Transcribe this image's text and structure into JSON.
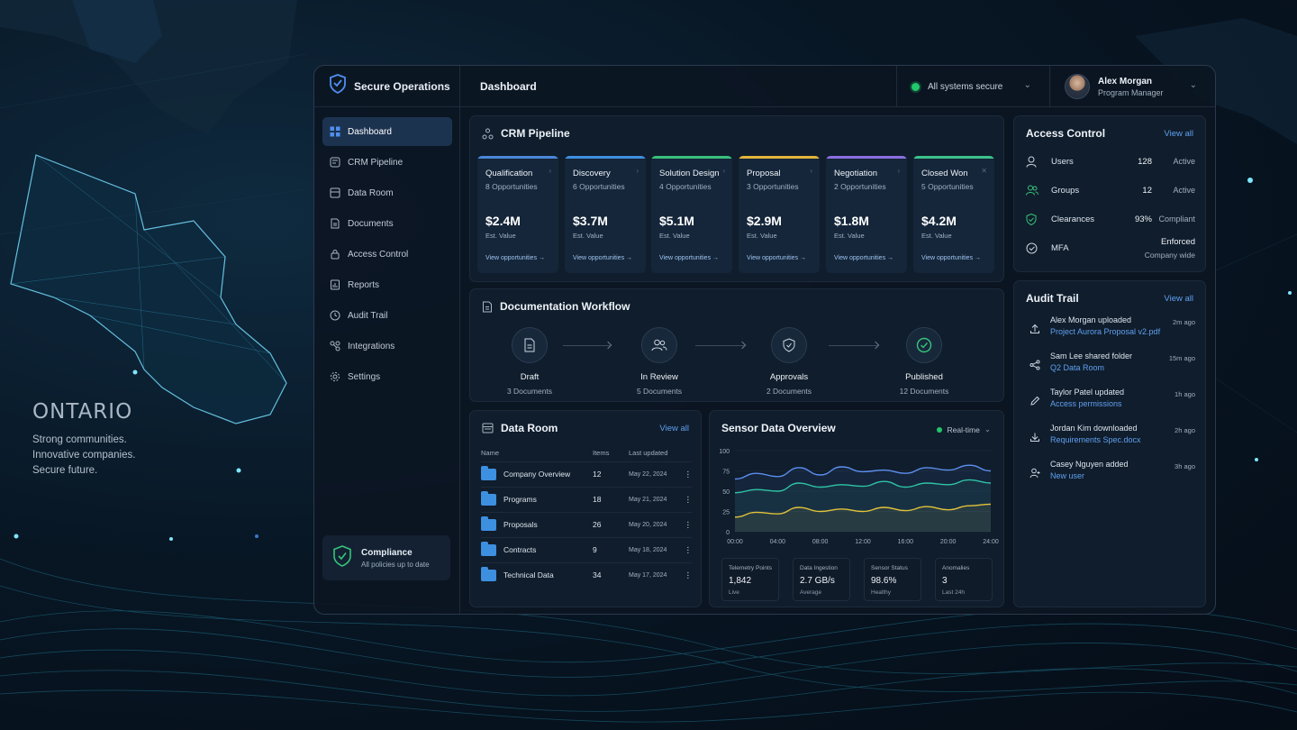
{
  "ontario": {
    "title": "ONTARIO",
    "lines": [
      "Strong communities.",
      "Innovative companies.",
      "Secure future."
    ]
  },
  "brand": {
    "name": "Secure Operations"
  },
  "nav": [
    {
      "label": "Dashboard",
      "icon": "dashboard-icon",
      "active": true
    },
    {
      "label": "CRM Pipeline",
      "icon": "pipeline-icon"
    },
    {
      "label": "Data Room",
      "icon": "database-icon"
    },
    {
      "label": "Documents",
      "icon": "document-icon"
    },
    {
      "label": "Access Control",
      "icon": "lock-icon"
    },
    {
      "label": "Reports",
      "icon": "report-icon"
    },
    {
      "label": "Audit Trail",
      "icon": "audit-icon"
    },
    {
      "label": "Integrations",
      "icon": "integrations-icon"
    },
    {
      "label": "Settings",
      "icon": "gear-icon"
    }
  ],
  "compliance": {
    "title": "Compliance",
    "subtitle": "All policies up to date"
  },
  "header": {
    "title": "Dashboard",
    "status": "All systems secure"
  },
  "user": {
    "name": "Alex Morgan",
    "role": "Program Manager"
  },
  "crm": {
    "title": "CRM Pipeline",
    "stages": [
      {
        "name": "Qualification",
        "count": "8 Opportunities",
        "value": "$2.4M",
        "value_label": "Est. Value",
        "link": "View opportunities",
        "color": "#4a86d8"
      },
      {
        "name": "Discovery",
        "count": "6 Opportunities",
        "value": "$3.7M",
        "value_label": "Est. Value",
        "link": "View opportunities",
        "color": "#3f8ee0"
      },
      {
        "name": "Solution Design",
        "count": "4 Opportunities",
        "value": "$5.1M",
        "value_label": "Est. Value",
        "link": "View opportunities",
        "color": "#39c07a"
      },
      {
        "name": "Proposal",
        "count": "3 Opportunities",
        "value": "$2.9M",
        "value_label": "Est. Value",
        "link": "View opportunities",
        "color": "#e3b43a"
      },
      {
        "name": "Negotiation",
        "count": "2 Opportunities",
        "value": "$1.8M",
        "value_label": "Est. Value",
        "link": "View opportunities",
        "color": "#8a6ee0"
      },
      {
        "name": "Closed Won",
        "count": "5 Opportunities",
        "value": "$4.2M",
        "value_label": "Est. Value",
        "link": "View opportunities",
        "color": "#3cc38a"
      }
    ]
  },
  "workflow": {
    "title": "Documentation Workflow",
    "steps": [
      {
        "name": "Draft",
        "count": "3 Documents"
      },
      {
        "name": "In Review",
        "count": "5 Documents"
      },
      {
        "name": "Approvals",
        "count": "2 Documents"
      },
      {
        "name": "Published",
        "count": "12 Documents"
      }
    ]
  },
  "data_room": {
    "title": "Data Room",
    "view_all": "View all",
    "columns": [
      "Name",
      "Items",
      "Last updated"
    ],
    "rows": [
      {
        "name": "Company Overview",
        "items": "12",
        "updated": "May 22, 2024"
      },
      {
        "name": "Programs",
        "items": "18",
        "updated": "May 21, 2024"
      },
      {
        "name": "Proposals",
        "items": "26",
        "updated": "May 20, 2024"
      },
      {
        "name": "Contracts",
        "items": "9",
        "updated": "May 18, 2024"
      },
      {
        "name": "Technical Data",
        "items": "34",
        "updated": "May 17, 2024"
      }
    ]
  },
  "sensor": {
    "title": "Sensor Data Overview",
    "mode": "Real-time",
    "stats": [
      {
        "label": "Telemetry Points",
        "value": "1,842",
        "sub": "Live"
      },
      {
        "label": "Data Ingestion",
        "value": "2.7 GB/s",
        "sub": "Average"
      },
      {
        "label": "Sensor Status",
        "value": "98.6%",
        "sub": "Healthy"
      },
      {
        "label": "Anomalies",
        "value": "3",
        "sub": "Last 24h"
      }
    ]
  },
  "chart_data": {
    "type": "line",
    "x": [
      "00:00",
      "02:00",
      "04:00",
      "06:00",
      "08:00",
      "10:00",
      "12:00",
      "14:00",
      "16:00",
      "18:00",
      "20:00",
      "22:00",
      "24:00"
    ],
    "xticks": [
      "00:00",
      "04:00",
      "08:00",
      "12:00",
      "16:00",
      "20:00",
      "24:00"
    ],
    "yticks": [
      0,
      25,
      50,
      75,
      100
    ],
    "ylim": [
      0,
      100
    ],
    "series": [
      {
        "color": "#5b8ff0",
        "values": [
          65,
          72,
          68,
          79,
          70,
          80,
          74,
          76,
          72,
          79,
          76,
          82,
          75
        ]
      },
      {
        "color": "#2fc3a4",
        "values": [
          48,
          52,
          50,
          60,
          55,
          58,
          56,
          62,
          55,
          60,
          58,
          64,
          60
        ]
      },
      {
        "color": "#e3c23a",
        "values": [
          18,
          24,
          22,
          30,
          25,
          28,
          25,
          30,
          26,
          31,
          27,
          32,
          34
        ]
      }
    ]
  },
  "access": {
    "title": "Access Control",
    "view_all": "View all",
    "rows": [
      {
        "label": "Users",
        "value": "128",
        "status": "Active",
        "icon": "user-icon"
      },
      {
        "label": "Groups",
        "value": "12",
        "status": "Active",
        "icon": "group-icon"
      },
      {
        "label": "Clearances",
        "value": "93%",
        "status": "Compliant",
        "icon": "shield-check-icon"
      },
      {
        "label": "MFA",
        "value": "",
        "status": "Enforced",
        "status2": "Company wide",
        "icon": "check-circle-icon"
      }
    ]
  },
  "audit": {
    "title": "Audit Trail",
    "view_all": "View all",
    "rows": [
      {
        "action": "Alex Morgan uploaded",
        "target": "Project Aurora Proposal v2.pdf",
        "time": "2m ago",
        "icon": "upload-icon"
      },
      {
        "action": "Sam Lee shared folder",
        "target": "Q2 Data Room",
        "time": "15m ago",
        "icon": "share-icon"
      },
      {
        "action": "Taylor Patel updated",
        "target": "Access permissions",
        "time": "1h ago",
        "icon": "edit-icon"
      },
      {
        "action": "Jordan Kim downloaded",
        "target": "Requirements Spec.docx",
        "time": "2h ago",
        "icon": "download-icon"
      },
      {
        "action": "Casey Nguyen added",
        "target": "New user",
        "time": "3h ago",
        "icon": "add-user-icon"
      }
    ]
  }
}
